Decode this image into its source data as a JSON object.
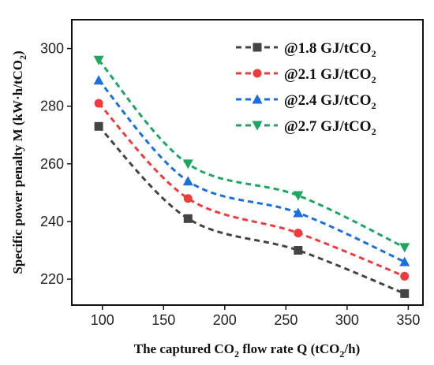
{
  "chart_data": {
    "type": "line",
    "x": [
      97,
      170,
      260,
      347
    ],
    "series": [
      {
        "name": "@1.8 GJ/tCO2",
        "color": "#444444",
        "marker": "square",
        "values": [
          273,
          241,
          230,
          215
        ]
      },
      {
        "name": "@2.1 GJ/tCO2",
        "color": "#ef3b3b",
        "marker": "circle",
        "values": [
          281,
          248,
          236,
          221
        ]
      },
      {
        "name": "@2.4 GJ/tCO2",
        "color": "#1a6fe0",
        "marker": "triangle-up",
        "values": [
          289,
          254,
          243,
          226
        ]
      },
      {
        "name": "@2.7 GJ/tCO2",
        "color": "#1ba760",
        "marker": "triangle-down",
        "values": [
          296,
          260,
          249,
          231
        ]
      }
    ],
    "xlabel": "The captured CO2 flow rate Q (tCO2/h)",
    "ylabel": "Specific power penalty M (kW·h/tCO2)",
    "xlim": [
      75,
      362
    ],
    "ylim": [
      211,
      310
    ],
    "xticks": [
      100,
      150,
      200,
      250,
      300,
      350
    ],
    "yticks": [
      220,
      240,
      260,
      280,
      300
    ],
    "legend": "top-right",
    "grid": false,
    "line_style": "dashed"
  }
}
